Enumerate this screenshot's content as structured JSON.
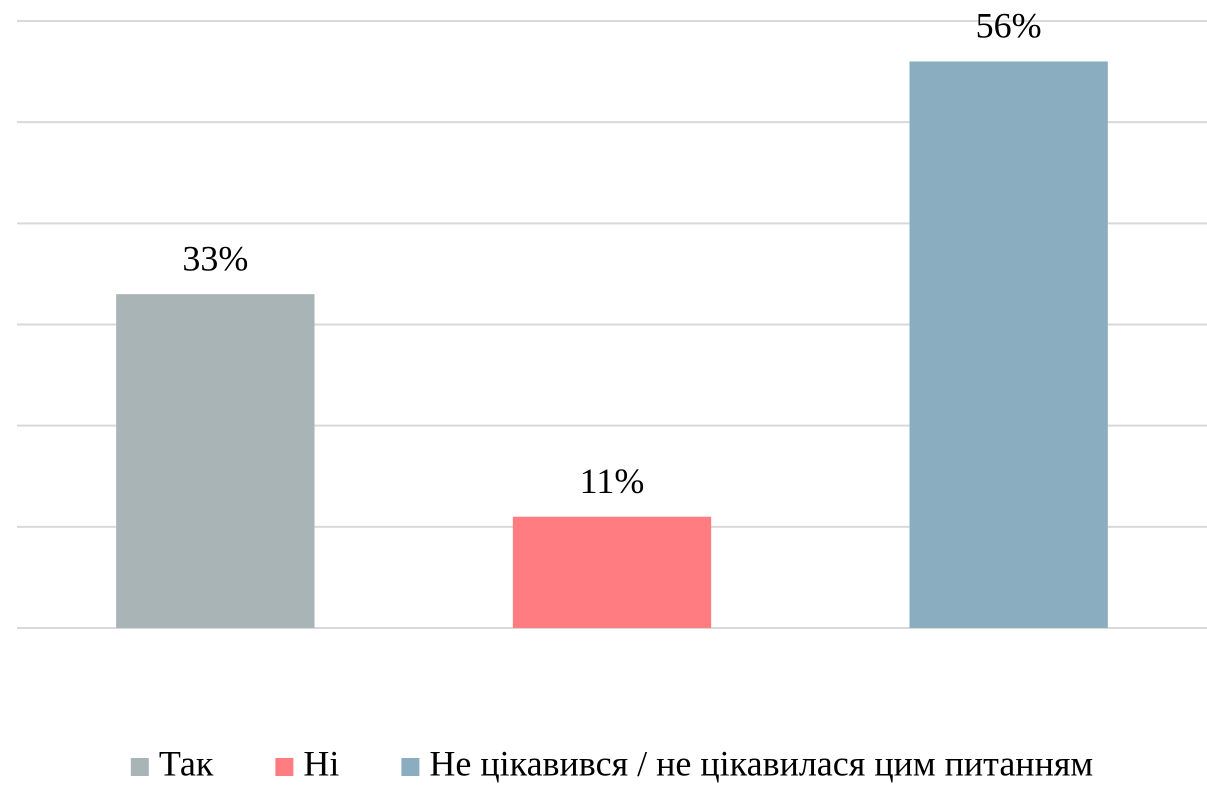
{
  "chart_data": {
    "type": "bar",
    "categories": [
      "Так",
      "Ні",
      "Не цікавився / не цікавилася цим питанням"
    ],
    "values": [
      33,
      11,
      56
    ],
    "value_labels": [
      "33%",
      "11%",
      "56%"
    ],
    "colors": [
      "#a9b4b7",
      "#ff7c80",
      "#8aaec0"
    ],
    "ylim": [
      0,
      60
    ],
    "yticks": [
      0,
      10,
      20,
      30,
      40,
      50,
      60
    ],
    "grid": true,
    "legend": "bottom"
  }
}
